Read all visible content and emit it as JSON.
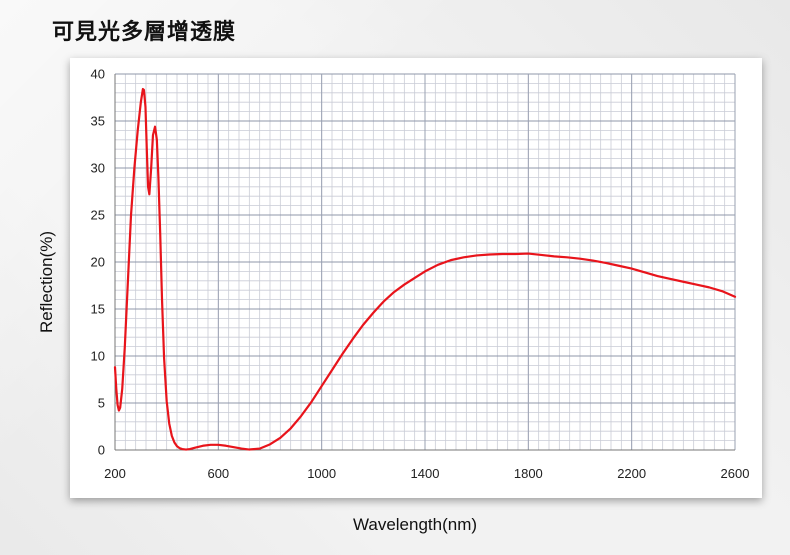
{
  "title": "可見光多層增透膜",
  "chart_data": {
    "type": "line",
    "title": "",
    "xlabel": "Wavelength(nm)",
    "ylabel": "Reflection(%)",
    "xlim": [
      200,
      2600
    ],
    "ylim": [
      0,
      40
    ],
    "x_ticks": [
      200,
      600,
      1000,
      1400,
      1800,
      2200,
      2600
    ],
    "y_ticks": [
      0,
      5,
      10,
      15,
      20,
      25,
      30,
      35,
      40
    ],
    "grid": true,
    "series": [
      {
        "color": "#e8141b",
        "x": [
          200,
          205,
          210,
          215,
          220,
          228,
          238,
          250,
          262,
          275,
          288,
          300,
          308,
          312,
          318,
          323,
          328,
          333,
          340,
          347,
          355,
          362,
          368,
          375,
          382,
          390,
          400,
          410,
          420,
          430,
          440,
          450,
          460,
          475,
          490,
          510,
          540,
          570,
          600,
          630,
          660,
          690,
          720,
          760,
          800,
          840,
          880,
          920,
          960,
          1000,
          1040,
          1080,
          1120,
          1160,
          1200,
          1240,
          1280,
          1320,
          1360,
          1400,
          1450,
          1500,
          1550,
          1600,
          1650,
          1700,
          1750,
          1800,
          1850,
          1900,
          1950,
          2000,
          2050,
          2100,
          2150,
          2200,
          2250,
          2300,
          2350,
          2400,
          2450,
          2500,
          2550,
          2600
        ],
        "y": [
          8.8,
          6.5,
          4.8,
          4.2,
          4.5,
          6.5,
          11,
          18,
          25,
          30,
          34,
          37,
          38.4,
          38.3,
          36.5,
          32,
          28,
          27.2,
          30,
          33.5,
          34.4,
          33,
          29,
          23,
          16,
          9.8,
          5.2,
          2.8,
          1.5,
          0.8,
          0.4,
          0.2,
          0.1,
          0.05,
          0.1,
          0.25,
          0.45,
          0.55,
          0.55,
          0.45,
          0.3,
          0.15,
          0.05,
          0.15,
          0.6,
          1.3,
          2.3,
          3.6,
          5.1,
          6.8,
          8.5,
          10.2,
          11.8,
          13.3,
          14.6,
          15.8,
          16.8,
          17.6,
          18.3,
          19.0,
          19.7,
          20.2,
          20.5,
          20.7,
          20.8,
          20.85,
          20.85,
          20.9,
          20.75,
          20.6,
          20.5,
          20.35,
          20.15,
          19.9,
          19.6,
          19.3,
          18.9,
          18.5,
          18.2,
          17.9,
          17.6,
          17.3,
          16.9,
          16.3
        ]
      }
    ]
  }
}
